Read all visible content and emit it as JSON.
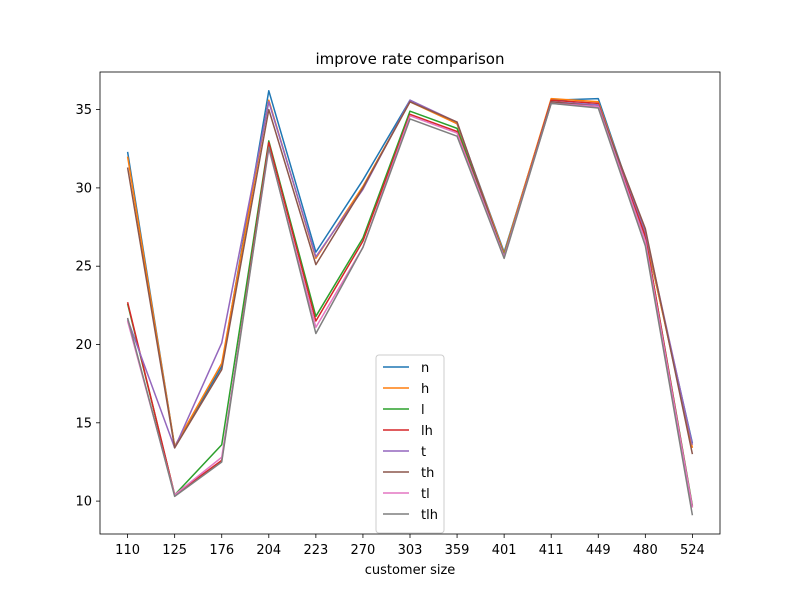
{
  "chart_data": {
    "type": "line",
    "title": "improve rate comparison",
    "xlabel": "customer size",
    "ylabel": "",
    "categories": [
      "110",
      "125",
      "176",
      "204",
      "223",
      "270",
      "303",
      "359",
      "401",
      "411",
      "449",
      "480",
      "524"
    ],
    "yticks": [
      10,
      15,
      20,
      25,
      30,
      35
    ],
    "ylim": [
      7.9,
      37.4
    ],
    "grid": false,
    "legend_position": "lower-center",
    "series": [
      {
        "name": "n",
        "color": "#1f77b4",
        "values": [
          32.3,
          13.5,
          18.6,
          36.2,
          25.9,
          30.5,
          35.6,
          34.1,
          25.9,
          35.6,
          35.7,
          26.9,
          13.7
        ]
      },
      {
        "name": "h",
        "color": "#ff7f0e",
        "values": [
          32.0,
          13.5,
          18.8,
          35.6,
          25.5,
          30.1,
          35.5,
          34.1,
          25.8,
          35.7,
          35.5,
          27.0,
          13.4
        ]
      },
      {
        "name": "l",
        "color": "#2ca02c",
        "values": [
          22.6,
          10.4,
          13.6,
          33.0,
          21.8,
          26.8,
          34.9,
          33.8,
          25.7,
          35.4,
          35.2,
          26.9,
          9.7
        ]
      },
      {
        "name": "lh",
        "color": "#d62728",
        "values": [
          22.7,
          10.4,
          12.6,
          32.9,
          21.5,
          26.6,
          34.7,
          33.6,
          25.6,
          35.6,
          35.4,
          26.9,
          9.6
        ]
      },
      {
        "name": "t",
        "color": "#9467bd",
        "values": [
          21.6,
          13.4,
          20.1,
          35.5,
          25.6,
          29.9,
          35.6,
          34.2,
          25.6,
          35.5,
          35.3,
          27.2,
          13.6
        ]
      },
      {
        "name": "th",
        "color": "#8c564b",
        "values": [
          31.3,
          13.4,
          18.4,
          35.0,
          25.1,
          30.0,
          35.5,
          34.2,
          25.6,
          35.5,
          35.2,
          27.4,
          13.0
        ]
      },
      {
        "name": "tl",
        "color": "#e377c2",
        "values": [
          21.5,
          10.4,
          12.8,
          32.5,
          21.1,
          26.2,
          34.6,
          33.5,
          25.6,
          35.4,
          35.2,
          26.6,
          9.6
        ]
      },
      {
        "name": "tlh",
        "color": "#7f7f7f",
        "values": [
          21.7,
          10.3,
          12.5,
          32.6,
          20.7,
          26.2,
          34.4,
          33.3,
          25.5,
          35.4,
          35.1,
          26.3,
          9.1
        ]
      }
    ]
  }
}
